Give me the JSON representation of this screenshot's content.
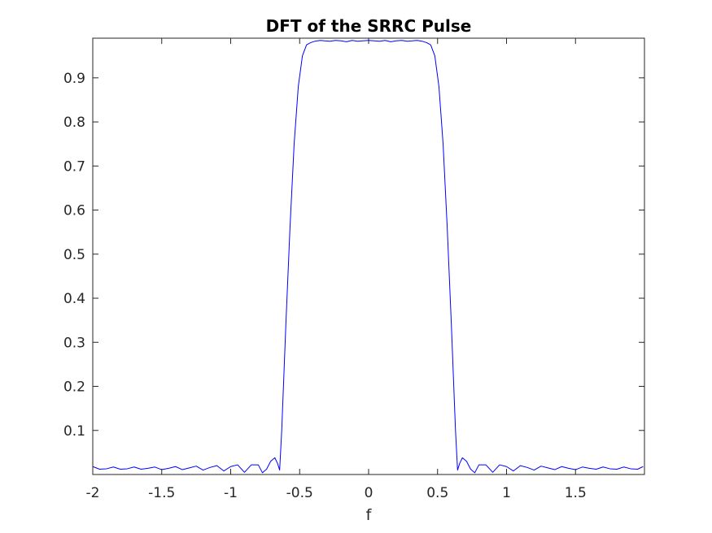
{
  "chart_data": {
    "type": "line",
    "title": "DFT of the SRRC Pulse",
    "xlabel": "f",
    "ylabel": "",
    "xlim": [
      -2,
      2
    ],
    "ylim": [
      0,
      0.99
    ],
    "grid": false,
    "legend": "none",
    "x_ticks": [
      -2,
      -1.5,
      -1,
      -0.5,
      0,
      0.5,
      1,
      1.5
    ],
    "x_tick_labels": [
      "-2",
      "-1.5",
      "-1",
      "-0.5",
      "0",
      "0.5",
      "1",
      "1.5"
    ],
    "y_ticks": [
      0.1,
      0.2,
      0.3,
      0.4,
      0.5,
      0.6,
      0.7,
      0.8,
      0.9
    ],
    "y_tick_labels": [
      "0.1",
      "0.2",
      "0.3",
      "0.4",
      "0.5",
      "0.6",
      "0.7",
      "0.8",
      "0.9"
    ],
    "colors": {
      "series": "#0000ff",
      "axes": "#262626"
    },
    "series": [
      {
        "x": [
          -2.0,
          -1.95,
          -1.9,
          -1.85,
          -1.8,
          -1.75,
          -1.7,
          -1.65,
          -1.6,
          -1.55,
          -1.5,
          -1.45,
          -1.4,
          -1.35,
          -1.3,
          -1.25,
          -1.2,
          -1.15,
          -1.1,
          -1.05,
          -1.0,
          -0.95,
          -0.9,
          -0.85,
          -0.8,
          -0.77,
          -0.74,
          -0.71,
          -0.68,
          -0.66,
          -0.645,
          -0.63,
          -0.6,
          -0.57,
          -0.54,
          -0.51,
          -0.48,
          -0.45,
          -0.42,
          -0.39,
          -0.37,
          -0.35,
          -0.32,
          -0.28,
          -0.24,
          -0.2,
          -0.16,
          -0.12,
          -0.08,
          -0.04,
          0.0,
          0.04,
          0.08,
          0.12,
          0.16,
          0.2,
          0.24,
          0.28,
          0.32,
          0.35,
          0.37,
          0.39,
          0.42,
          0.45,
          0.48,
          0.51,
          0.54,
          0.57,
          0.6,
          0.63,
          0.645,
          0.66,
          0.68,
          0.71,
          0.74,
          0.77,
          0.8,
          0.85,
          0.9,
          0.95,
          1.0,
          1.05,
          1.1,
          1.15,
          1.2,
          1.25,
          1.3,
          1.35,
          1.4,
          1.45,
          1.5,
          1.55,
          1.6,
          1.65,
          1.7,
          1.75,
          1.8,
          1.85,
          1.9,
          1.95,
          1.99
        ],
        "y": [
          0.018,
          0.012,
          0.013,
          0.017,
          0.012,
          0.013,
          0.017,
          0.012,
          0.014,
          0.017,
          0.011,
          0.014,
          0.018,
          0.011,
          0.015,
          0.019,
          0.01,
          0.016,
          0.02,
          0.008,
          0.018,
          0.022,
          0.005,
          0.022,
          0.022,
          0.004,
          0.012,
          0.03,
          0.038,
          0.025,
          0.01,
          0.1,
          0.34,
          0.56,
          0.75,
          0.88,
          0.95,
          0.975,
          0.98,
          0.983,
          0.984,
          0.985,
          0.984,
          0.983,
          0.985,
          0.984,
          0.982,
          0.985,
          0.983,
          0.984,
          0.985,
          0.984,
          0.983,
          0.985,
          0.982,
          0.984,
          0.985,
          0.983,
          0.984,
          0.985,
          0.984,
          0.983,
          0.98,
          0.975,
          0.95,
          0.88,
          0.75,
          0.56,
          0.34,
          0.1,
          0.01,
          0.025,
          0.038,
          0.03,
          0.012,
          0.004,
          0.022,
          0.022,
          0.005,
          0.022,
          0.018,
          0.008,
          0.02,
          0.016,
          0.01,
          0.019,
          0.015,
          0.011,
          0.018,
          0.014,
          0.011,
          0.017,
          0.014,
          0.012,
          0.017,
          0.013,
          0.012,
          0.017,
          0.013,
          0.012,
          0.018
        ]
      }
    ]
  }
}
